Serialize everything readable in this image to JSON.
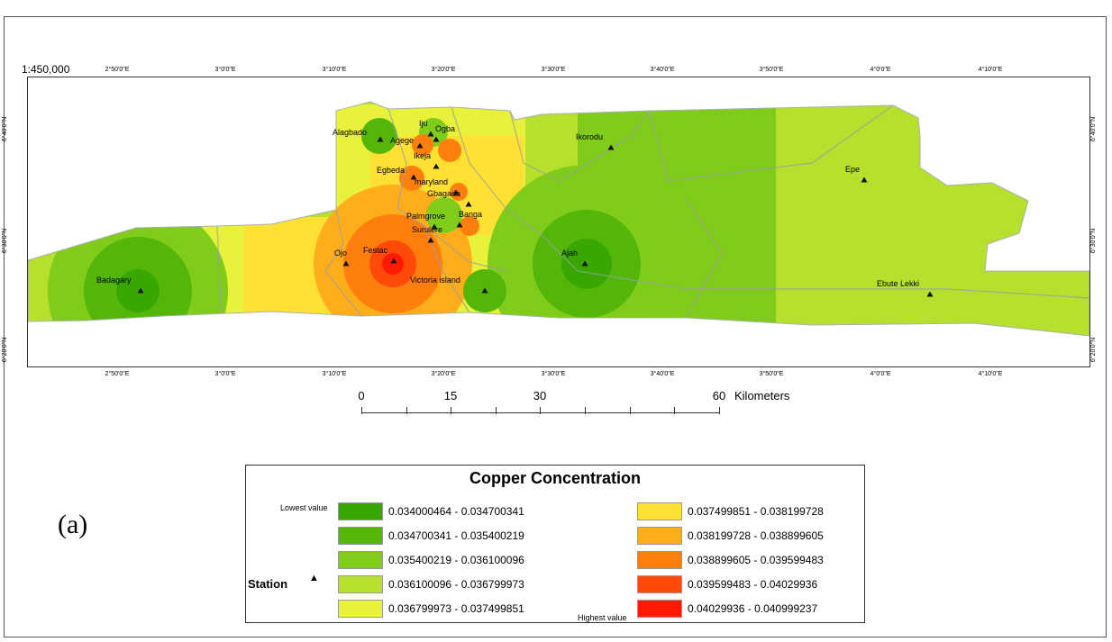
{
  "map": {
    "scale_ratio": "1:450,000",
    "lon_labels": [
      "2°50'0\"E",
      "3°0'0\"E",
      "3°10'0\"E",
      "3°20'0\"E",
      "3°30'0\"E",
      "3°40'0\"E",
      "3°50'0\"E",
      "4°0'0\"E",
      "4°10'0\"E"
    ],
    "lat_labels": [
      "6°40'0\"N",
      "6°30'0\"N",
      "6°20'0\"N"
    ],
    "stations": [
      {
        "name": "Alagbado"
      },
      {
        "name": "Iju"
      },
      {
        "name": "Agege"
      },
      {
        "name": "Ogba"
      },
      {
        "name": "Ikeja"
      },
      {
        "name": "Egbeda"
      },
      {
        "name": "maryland"
      },
      {
        "name": "Gbagada"
      },
      {
        "name": "Palmgrove"
      },
      {
        "name": "Banga"
      },
      {
        "name": "Surulere"
      },
      {
        "name": "Ojo"
      },
      {
        "name": "Festac"
      },
      {
        "name": "Victoria island"
      },
      {
        "name": "Ajah"
      },
      {
        "name": "Ikorodu"
      },
      {
        "name": "Epe"
      },
      {
        "name": "Ebute Lekki"
      },
      {
        "name": "Badagary"
      }
    ]
  },
  "scalebar": {
    "labels": [
      "0",
      "15",
      "30",
      "60"
    ],
    "unit": "Kilometers"
  },
  "panel_label": "(a)",
  "legend": {
    "title": "Copper Concentration",
    "lowest_label": "Lowest value",
    "highest_label": "Highest value",
    "station_label": "Station",
    "station_symbol": "▲",
    "classes": [
      {
        "range": "0.034000464 - 0.034700341",
        "color": "#38a800"
      },
      {
        "range": "0.034700341 - 0.035400219",
        "color": "#55b60a"
      },
      {
        "range": "0.035400219 - 0.036100096",
        "color": "#80cc1a"
      },
      {
        "range": "0.036100096 - 0.036799973",
        "color": "#b5e02e"
      },
      {
        "range": "0.036799973 - 0.037499851",
        "color": "#e8f23a"
      },
      {
        "range": "0.037499851 - 0.038199728",
        "color": "#ffe033"
      },
      {
        "range": "0.038199728 - 0.038899605",
        "color": "#ffad1a"
      },
      {
        "range": "0.038899605 - 0.039599483",
        "color": "#ff7f0e"
      },
      {
        "range": "0.039599483 - 0.04029936",
        "color": "#ff4a0a"
      },
      {
        "range": "0.04029936 - 0.040999237",
        "color": "#ff1a00"
      }
    ]
  }
}
